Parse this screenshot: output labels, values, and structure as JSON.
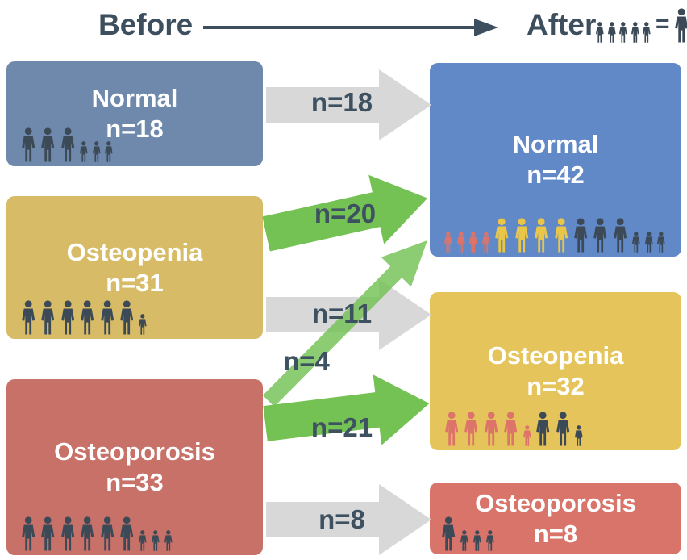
{
  "header": {
    "before_label": "Before",
    "after_label": "After",
    "legend_equals": "="
  },
  "legend": {
    "left_icons": [
      {
        "count": 5,
        "size": "small",
        "color": "icon_dark"
      }
    ],
    "right_icons": [
      {
        "count": 1,
        "size": "big",
        "color": "icon_dark"
      }
    ]
  },
  "before_boxes": [
    {
      "title": "Normal",
      "n": "n=18",
      "icons": [
        {
          "count": 3,
          "size": "big",
          "color": "icon_dark"
        },
        {
          "count": 3,
          "size": "small",
          "color": "icon_dark"
        }
      ]
    },
    {
      "title": "Osteopenia",
      "n": "n=31",
      "icons": [
        {
          "count": 6,
          "size": "big",
          "color": "icon_dark"
        },
        {
          "count": 1,
          "size": "small",
          "color": "icon_dark"
        }
      ]
    },
    {
      "title": "Osteoporosis",
      "n": "n=33",
      "icons": [
        {
          "count": 6,
          "size": "big",
          "color": "icon_dark"
        },
        {
          "count": 3,
          "size": "small",
          "color": "icon_dark"
        }
      ]
    }
  ],
  "after_boxes": [
    {
      "title": "Normal",
      "n": "n=42",
      "icons": [
        {
          "count": 4,
          "size": "small",
          "color": "icon_red"
        },
        {
          "count": 4,
          "size": "big",
          "color": "icon_yellow"
        },
        {
          "count": 3,
          "size": "big",
          "color": "icon_dark"
        },
        {
          "count": 3,
          "size": "small",
          "color": "icon_dark"
        }
      ]
    },
    {
      "title": "Osteopenia",
      "n": "n=32",
      "icons": [
        {
          "count": 4,
          "size": "big",
          "color": "icon_red"
        },
        {
          "count": 1,
          "size": "small",
          "color": "icon_red"
        },
        {
          "count": 2,
          "size": "big",
          "color": "icon_dark"
        },
        {
          "count": 1,
          "size": "small",
          "color": "icon_dark"
        }
      ]
    },
    {
      "title": "Osteoporosis",
      "n": "n=8",
      "icons": [
        {
          "count": 1,
          "size": "big",
          "color": "icon_dark"
        },
        {
          "count": 3,
          "size": "small",
          "color": "icon_dark"
        }
      ]
    }
  ],
  "flows": [
    {
      "label": "n=18",
      "from": "Normal",
      "to": "Normal",
      "arrow_color": "gray"
    },
    {
      "label": "n=20",
      "from": "Osteopenia",
      "to": "Normal",
      "arrow_color": "green"
    },
    {
      "label": "n=11",
      "from": "Osteopenia",
      "to": "Osteopenia",
      "arrow_color": "gray"
    },
    {
      "label": "n=4",
      "from": "Osteoporosis",
      "to": "Normal",
      "arrow_color": "green"
    },
    {
      "label": "n=21",
      "from": "Osteoporosis",
      "to": "Osteopenia",
      "arrow_color": "green"
    },
    {
      "label": "n=8",
      "from": "Osteoporosis",
      "to": "Osteoporosis",
      "arrow_color": "gray"
    }
  ],
  "colors": {
    "page_bg": "#ffffff",
    "heading_text": "#3d4f5e",
    "label_text": "#3d5161",
    "box_text": "#ffffff",
    "before_normal": "#6f89ac",
    "before_osteopenia": "#d8bb66",
    "before_osteoporosis": "#c87169",
    "after_normal": "#6189c7",
    "after_osteopenia": "#e6c45c",
    "after_osteoporosis": "#d9746a",
    "arrow_gray": "#d8d8d8",
    "arrow_green": "#74c154",
    "icon_dark": "#3c4a57",
    "icon_red": "#dd7469",
    "icon_yellow": "#e9c647"
  },
  "icon_sizes": {
    "big": 43,
    "small": 26
  }
}
